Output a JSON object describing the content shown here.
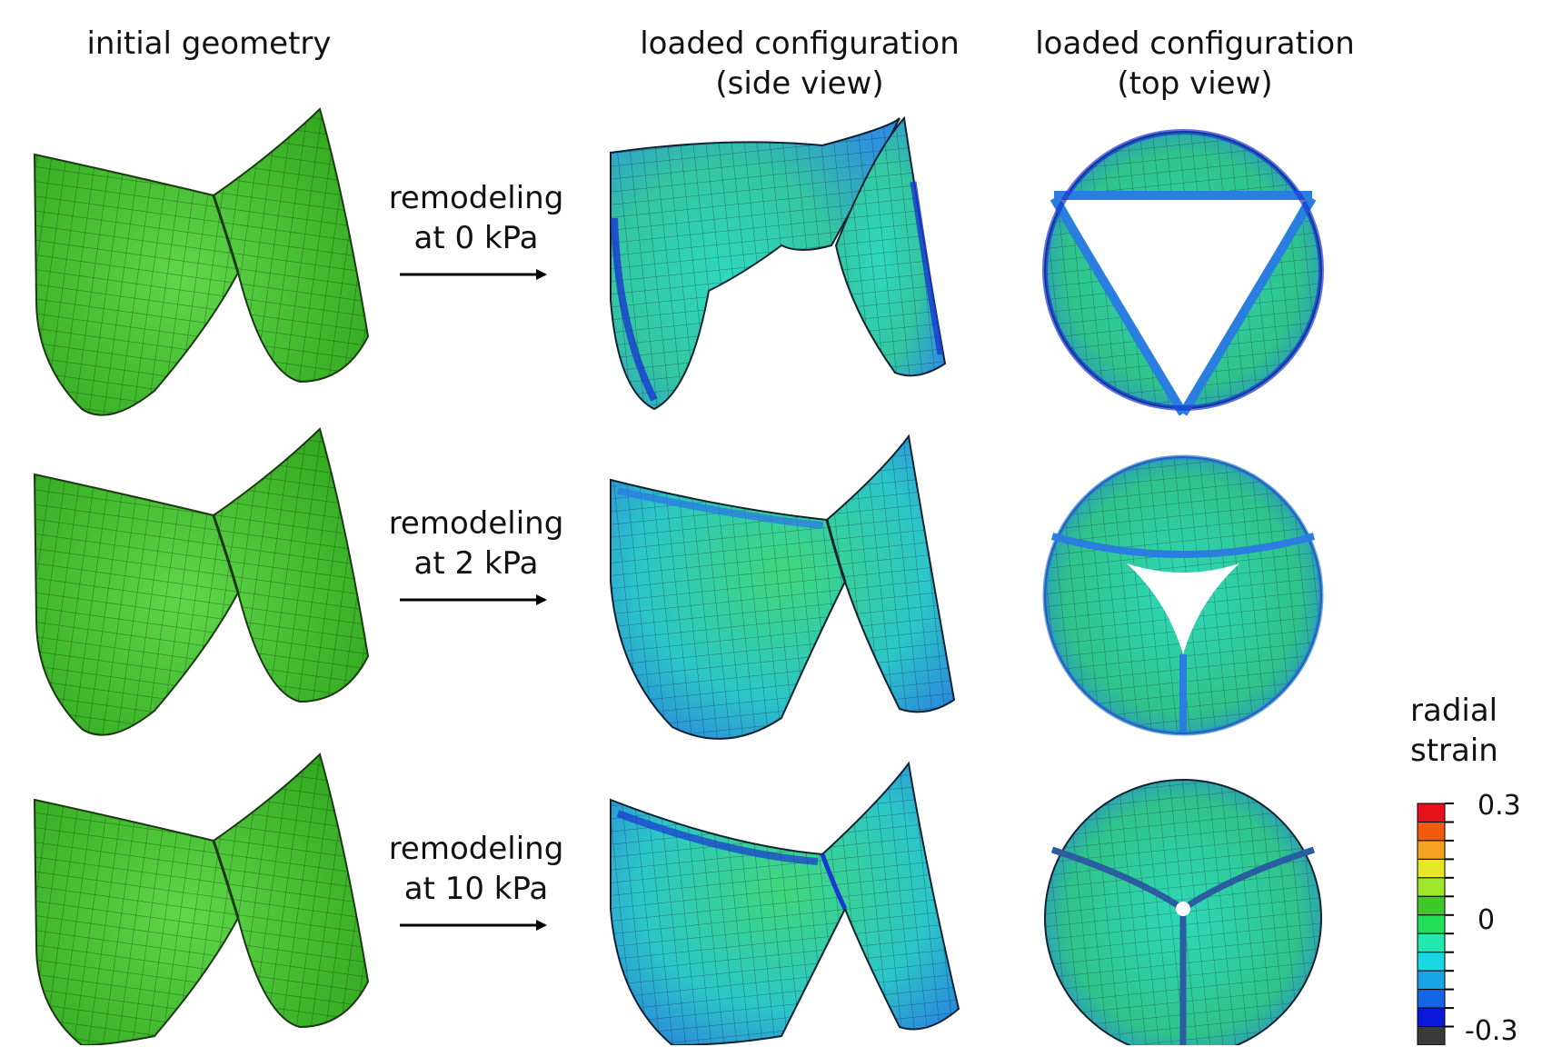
{
  "headers": {
    "initial": "initial geometry",
    "side_line1": "loaded configuration",
    "side_line2": "(side view)",
    "top_line1": "loaded configuration",
    "top_line2": "(top view)"
  },
  "rows": [
    {
      "line1": "remodeling",
      "line2": "at 0 kPa"
    },
    {
      "line1": "remodeling",
      "line2": "at 2 kPa"
    },
    {
      "line1": "remodeling",
      "line2": "at 10 kPa"
    }
  ],
  "legend": {
    "title_line1": "radial",
    "title_line2": "strain",
    "tick_max": "0.3",
    "tick_mid": "0",
    "tick_min": "-0.3",
    "colors": [
      "#e8101a",
      "#f25a0c",
      "#f5a020",
      "#e6e628",
      "#9ee62a",
      "#3ec82a",
      "#20e05a",
      "#20e8b0",
      "#18d8e6",
      "#1aa4e8",
      "#1466e6",
      "#0a18d8",
      "#3a3a3a"
    ]
  },
  "colors": {
    "initial_green": "#3fbf27",
    "mesh_line": "#1b3a14",
    "strain_teal": "#33c7c2",
    "strain_blue": "#2f8fe0",
    "strain_green": "#2fcf6a",
    "strain_dark_blue": "#1838d0"
  }
}
